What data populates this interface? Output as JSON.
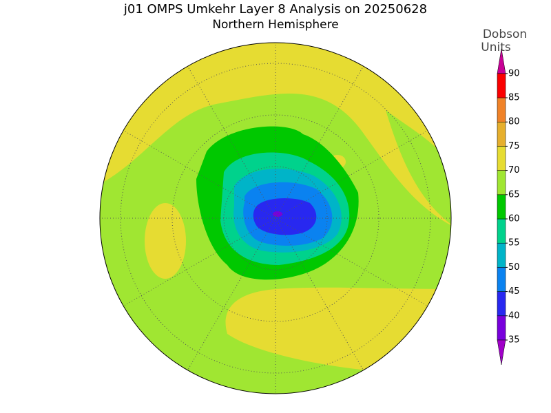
{
  "title": "j01 OMPS Umkehr Layer 8 Analysis on 20250628",
  "subtitle": "Northern Hemisphere",
  "colorbar": {
    "label": [
      "Dobson",
      "Units"
    ],
    "ticks": [
      35,
      40,
      45,
      50,
      55,
      60,
      65,
      70,
      75,
      80,
      85,
      90
    ],
    "colors": [
      "#a000c8",
      "#7800dc",
      "#2828f0",
      "#0a82f0",
      "#00b4c8",
      "#00d28c",
      "#00c800",
      "#a0e632",
      "#e6dc32",
      "#e6af2d",
      "#f08228",
      "#fa0000",
      "#c80096"
    ]
  }
}
